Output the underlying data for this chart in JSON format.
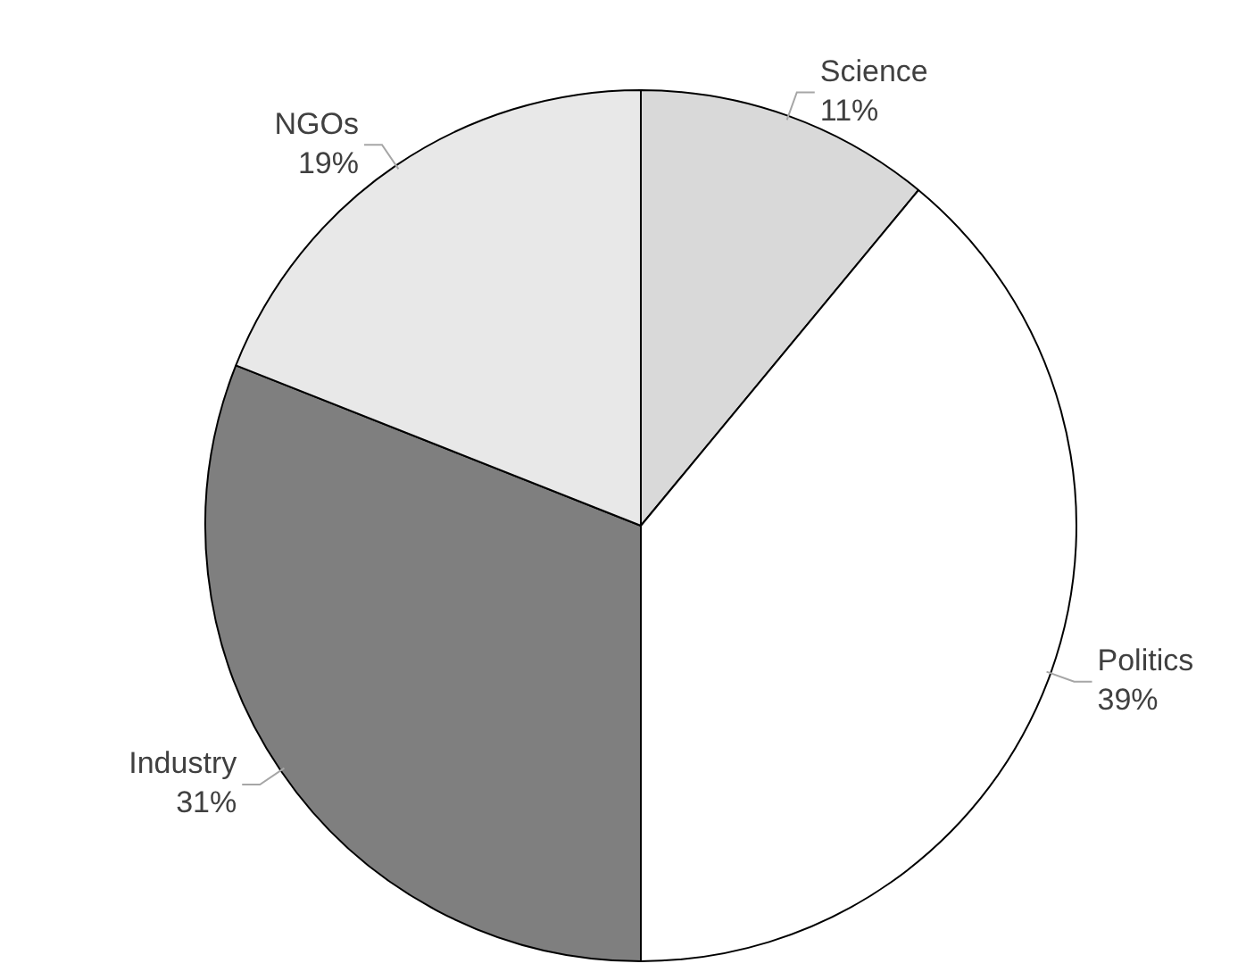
{
  "chart_data": {
    "type": "pie",
    "categories": [
      "Science",
      "Politics",
      "Industry",
      "NGOs"
    ],
    "values": [
      11,
      39,
      31,
      19
    ],
    "value_labels": [
      "11%",
      "39%",
      "31%",
      "19%"
    ],
    "colors": [
      "#d9d9d9",
      "#ffffff",
      "#7f7f7f",
      "#e8e8e8"
    ],
    "legend": false
  }
}
